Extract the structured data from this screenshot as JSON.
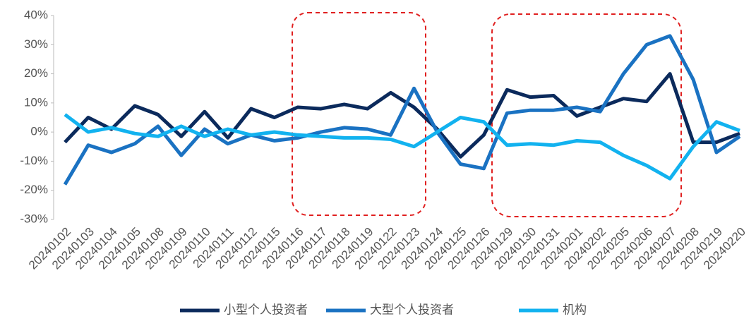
{
  "chart_data": {
    "type": "line",
    "categories": [
      "20240102",
      "20240103",
      "20240104",
      "20240105",
      "20240108",
      "20240109",
      "20240110",
      "20240111",
      "20240112",
      "20240115",
      "20240116",
      "20240117",
      "20240118",
      "20240119",
      "20240122",
      "20240123",
      "20240124",
      "20240125",
      "20240126",
      "20240129",
      "20240130",
      "20240131",
      "20240201",
      "20240202",
      "20240205",
      "20240206",
      "20240207",
      "20240208",
      "20240219",
      "20240220"
    ],
    "series": [
      {
        "name": "小型个人投资者",
        "color": "#0b2a5c",
        "values": [
          -3.5,
          5,
          1,
          9,
          6,
          -1.5,
          7,
          -2,
          8,
          5,
          8.5,
          8,
          9.5,
          8,
          13.5,
          8.5,
          1,
          -8.5,
          -1,
          14.5,
          12,
          12.5,
          5.5,
          8.5,
          11.5,
          10.5,
          20,
          -3.5,
          -3.5,
          -0.5
        ]
      },
      {
        "name": "大型个人投资者",
        "color": "#1a72c2",
        "values": [
          -18,
          -4.5,
          -7,
          -4,
          2,
          -8,
          1,
          -4,
          -1,
          -3,
          -2,
          0,
          1.5,
          1,
          -1,
          15,
          0,
          -11,
          -12.5,
          6.5,
          7.5,
          7.5,
          8.5,
          7,
          20,
          30,
          33,
          18,
          -7,
          -1.5
        ]
      },
      {
        "name": "机构",
        "color": "#12b2ef",
        "values": [
          6,
          0,
          1.5,
          -0.5,
          -1.5,
          2,
          -1.5,
          1,
          -1,
          0,
          -1,
          -1.5,
          -2,
          -2,
          -2.5,
          -5,
          0,
          5,
          3.5,
          -4.5,
          -4,
          -4.5,
          -3,
          -3.5,
          -8,
          -11.5,
          -16,
          -5,
          3.5,
          0.5
        ]
      }
    ],
    "ylim": [
      -30,
      40
    ],
    "yticks": [
      {
        "value": -30,
        "label": "-30%"
      },
      {
        "value": -20,
        "label": "-20%"
      },
      {
        "value": -10,
        "label": "-10%"
      },
      {
        "value": 0,
        "label": "0%"
      },
      {
        "value": 10,
        "label": "10%"
      },
      {
        "value": 20,
        "label": "20%"
      },
      {
        "value": 30,
        "label": "30%"
      },
      {
        "value": 40,
        "label": "40%"
      }
    ],
    "grid": false,
    "legend": "bottom"
  }
}
